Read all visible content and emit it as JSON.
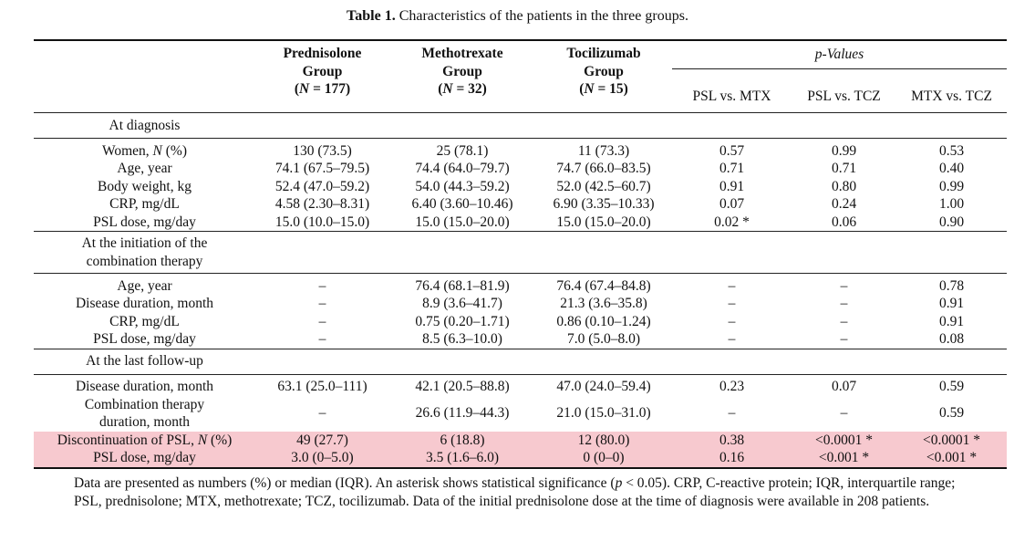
{
  "caption": {
    "label": "Table 1.",
    "text": "Characteristics of the patients in the three groups."
  },
  "header": {
    "groups": [
      {
        "line1": "Prednisolone",
        "line2": "Group",
        "line3": "(N = 177)"
      },
      {
        "line1": "Methotrexate",
        "line2": "Group",
        "line3": "(N = 32)"
      },
      {
        "line1": "Tocilizumab",
        "line2": "Group",
        "line3": "(N = 15)"
      }
    ],
    "pvalues_label": "p-Values",
    "comparisons": [
      "PSL vs. MTX",
      "PSL vs. TCZ",
      "MTX vs. TCZ"
    ]
  },
  "sections": {
    "diagnosis": {
      "title": "At diagnosis",
      "rows": [
        {
          "label": "Women, N (%)",
          "c": [
            "130 (73.5)",
            "25 (78.1)",
            "11 (73.3)",
            "0.57",
            "0.99",
            "0.53"
          ]
        },
        {
          "label": "Age, year",
          "c": [
            "74.1 (67.5–79.5)",
            "74.4 (64.0–79.7)",
            "74.7 (66.0–83.5)",
            "0.71",
            "0.71",
            "0.40"
          ]
        },
        {
          "label": "Body weight, kg",
          "c": [
            "52.4 (47.0–59.2)",
            "54.0 (44.3–59.2)",
            "52.0 (42.5–60.7)",
            "0.91",
            "0.80",
            "0.99"
          ]
        },
        {
          "label": "CRP, mg/dL",
          "c": [
            "4.58 (2.30–8.31)",
            "6.40 (3.60–10.46)",
            "6.90 (3.35–10.33)",
            "0.07",
            "0.24",
            "1.00"
          ]
        },
        {
          "label": "PSL dose, mg/day",
          "c": [
            "15.0 (10.0–15.0)",
            "15.0 (15.0–20.0)",
            "15.0 (15.0–20.0)",
            "0.02 *",
            "0.06",
            "0.90"
          ]
        }
      ]
    },
    "initiation": {
      "title_line1": "At the initiation of the",
      "title_line2": "combination therapy",
      "rows": [
        {
          "label": "Age, year",
          "c": [
            "–",
            "76.4 (68.1–81.9)",
            "76.4 (67.4–84.8)",
            "–",
            "–",
            "0.78"
          ]
        },
        {
          "label": "Disease duration, month",
          "c": [
            "–",
            "8.9 (3.6–41.7)",
            "21.3 (3.6–35.8)",
            "–",
            "–",
            "0.91"
          ]
        },
        {
          "label": "CRP, mg/dL",
          "c": [
            "–",
            "0.75 (0.20–1.71)",
            "0.86 (0.10–1.24)",
            "–",
            "–",
            "0.91"
          ]
        },
        {
          "label": "PSL dose, mg/day",
          "c": [
            "–",
            "8.5 (6.3–10.0)",
            "7.0 (5.0–8.0)",
            "–",
            "–",
            "0.08"
          ]
        }
      ]
    },
    "lastfollowup": {
      "title": "At the last follow-up",
      "rows": [
        {
          "label": "Disease duration, month",
          "c": [
            "63.1 (25.0–111)",
            "42.1 (20.5–88.8)",
            "47.0 (24.0–59.4)",
            "0.23",
            "0.07",
            "0.59"
          ]
        },
        {
          "label_line1": "Combination therapy",
          "label_line2": "duration, month",
          "c": [
            "–",
            "26.6 (11.9–44.3)",
            "21.0 (15.0–31.0)",
            "–",
            "–",
            "0.59"
          ]
        },
        {
          "label": "Discontinuation of PSL, N (%)",
          "c": [
            "49 (27.7)",
            "6 (18.8)",
            "12 (80.0)",
            "0.38",
            "<0.0001 *",
            "<0.0001 *"
          ]
        },
        {
          "label": "PSL dose, mg/day",
          "c": [
            "3.0 (0–5.0)",
            "3.5 (1.6–6.0)",
            "0 (0–0)",
            "0.16",
            "<0.001 *",
            "<0.001 *"
          ]
        }
      ]
    }
  },
  "highlight_color": "#f7c9cf",
  "footnote": "Data are presented as numbers (%) or median (IQR). An asterisk shows statistical significance (p < 0.05). CRP, C-reactive protein; IQR, interquartile range; PSL, prednisolone; MTX, methotrexate; TCZ, tocilizumab. Data of the initial prednisolone dose at the time of diagnosis were available in 208 patients."
}
